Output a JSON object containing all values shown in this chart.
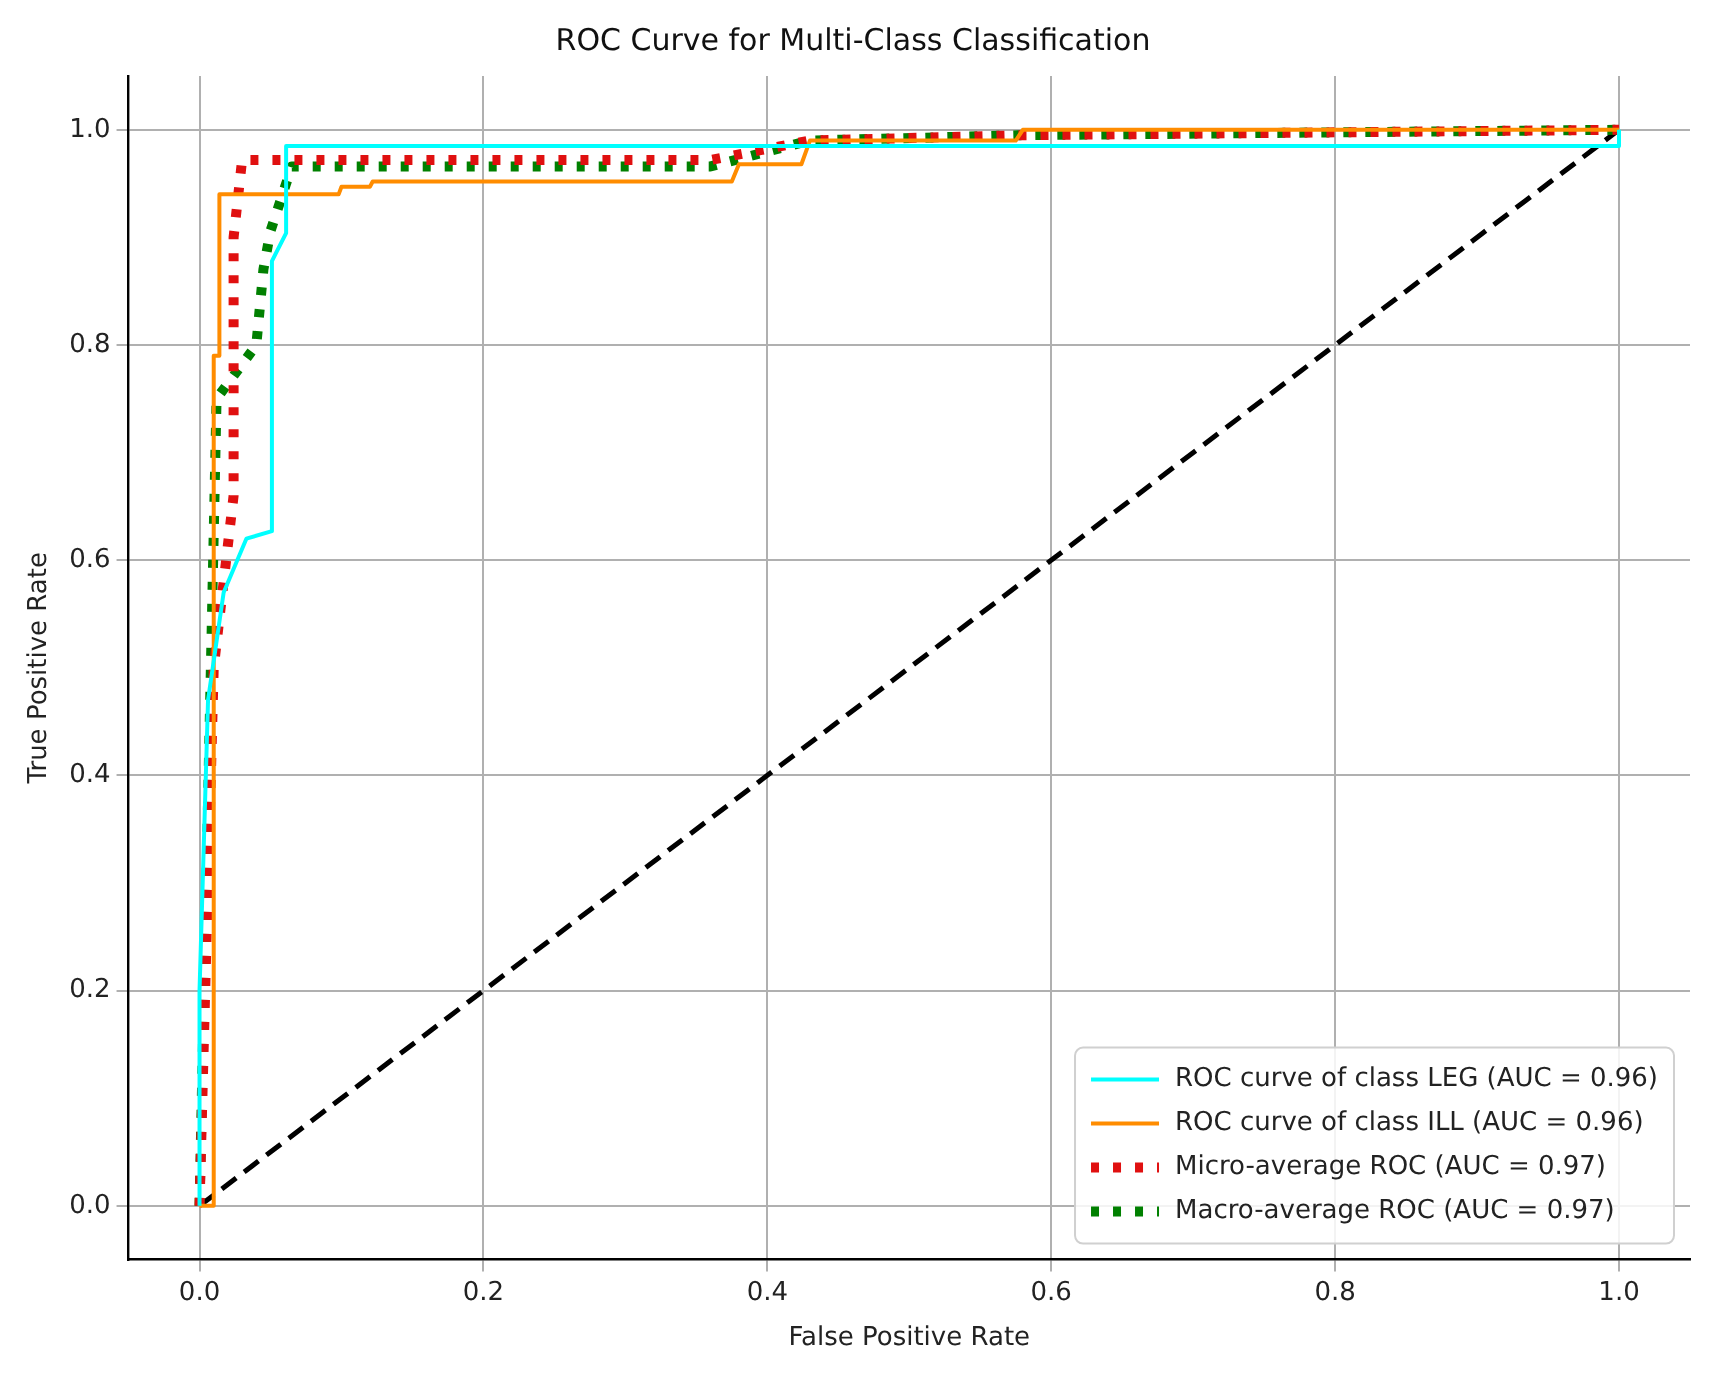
{
  "chart_data": {
    "type": "line",
    "title": "ROC Curve for Multi-Class Classification",
    "xlabel": "False Positive Rate",
    "ylabel": "True Positive Rate",
    "xlim": [
      -0.05,
      1.05
    ],
    "ylim": [
      -0.05,
      1.05
    ],
    "xticks": [
      {
        "value": 0,
        "label": "0.0"
      },
      0.2,
      0.4,
      0.6,
      0.8,
      {
        "value": 1,
        "label": "1.0"
      }
    ],
    "yticks": [
      {
        "value": 0,
        "label": "0.0"
      },
      0.2,
      0.4,
      0.6,
      0.8,
      {
        "value": 1,
        "label": "1.0"
      }
    ],
    "grid": true,
    "legend": "bottom right",
    "marker": "none",
    "series": [
      {
        "name": "ROC curve of class LEG (AUC = 0.96)",
        "color": "#00ffff",
        "line_style": "solid",
        "x": [
          0,
          0,
          0.006,
          0.017,
          0.033,
          0.051,
          0.051,
          0.061,
          0.061,
          1,
          1
        ],
        "values": [
          0,
          0.2,
          0.47,
          0.57,
          0.62,
          0.627,
          0.878,
          0.904,
          0.985,
          0.985,
          1
        ]
      },
      {
        "name": "ROC curve of class ILL (AUC = 0.96)",
        "color": "#ff8c00",
        "line_style": "solid",
        "x": [
          0,
          0.01,
          0.01,
          0.014,
          0.014,
          0.098,
          0.1,
          0.12,
          0.122,
          0.375,
          0.38,
          0.424,
          0.43,
          0.575,
          0.58,
          1
        ],
        "values": [
          0,
          0,
          0.79,
          0.79,
          0.94,
          0.94,
          0.947,
          0.947,
          0.952,
          0.952,
          0.968,
          0.968,
          0.99,
          0.99,
          1,
          1
        ]
      },
      {
        "name": "Micro-average ROC (AUC = 0.97)",
        "color": "#e01010",
        "line_style": "dotted",
        "x": [
          0,
          0.01,
          0.024,
          0.024,
          0.03,
          0.36,
          0.43,
          0.58,
          1
        ],
        "values": [
          0,
          0.5,
          0.66,
          0.9,
          0.972,
          0.972,
          0.99,
          0.995,
          1
        ]
      },
      {
        "name": "Macro-average ROC (AUC = 0.97)",
        "color": "#008000",
        "line_style": "dotted",
        "x": [
          0,
          0.012,
          0.04,
          0.045,
          0.05,
          0.058,
          0.065,
          0.36,
          0.43,
          0.58,
          1
        ],
        "values": [
          0,
          0.75,
          0.8,
          0.87,
          0.906,
          0.938,
          0.966,
          0.966,
          0.99,
          0.995,
          1
        ]
      },
      {
        "color": "#000000",
        "line_style": "dashed",
        "x": [
          0,
          1
        ],
        "values": [
          0,
          1
        ]
      }
    ]
  }
}
